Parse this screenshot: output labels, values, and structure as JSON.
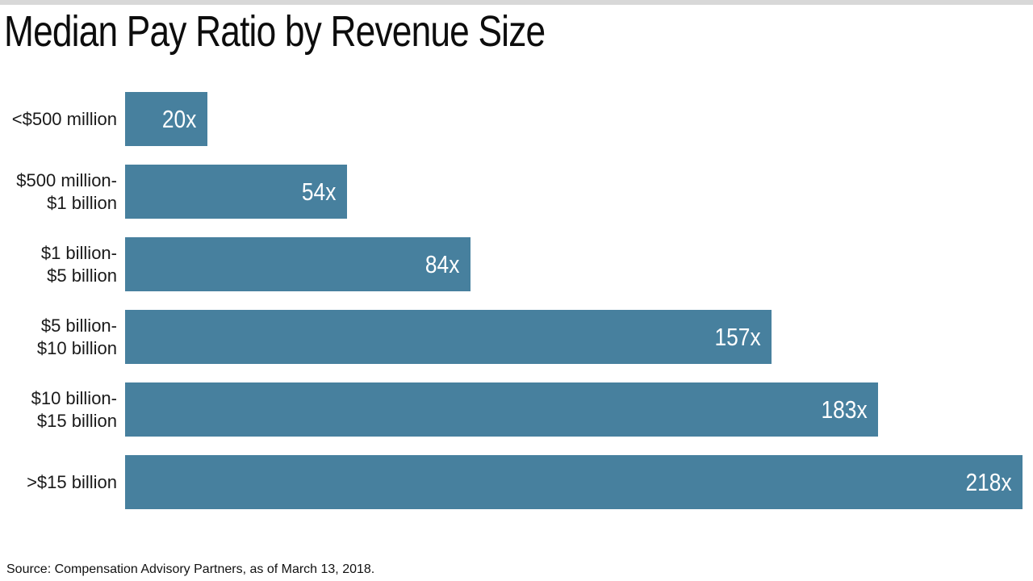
{
  "page": {
    "title": "Median Pay Ratio by Revenue Size",
    "source": "Source: Compensation Advisory Partners, as of March 13, 2018."
  },
  "chart_data": {
    "type": "bar",
    "orientation": "horizontal",
    "title": "Median Pay Ratio by Revenue Size",
    "categories": [
      "<$500 million",
      "$500 million-\n$1 billion",
      "$1 billion-\n$5 billion",
      "$5 billion-\n$10 billion",
      "$10 billion-\n$15 billion",
      ">$15 billion"
    ],
    "values": [
      20,
      54,
      84,
      157,
      183,
      218
    ],
    "value_labels": [
      "20x",
      "54x",
      "84x",
      "157x",
      "183x",
      "218x"
    ],
    "xlim": [
      0,
      218
    ],
    "bar_color": "#47809E",
    "value_label_color": "#FFFFFF",
    "grid": false,
    "legend": false,
    "source_note": "Source: Compensation Advisory Partners, as of March 13, 2018."
  }
}
